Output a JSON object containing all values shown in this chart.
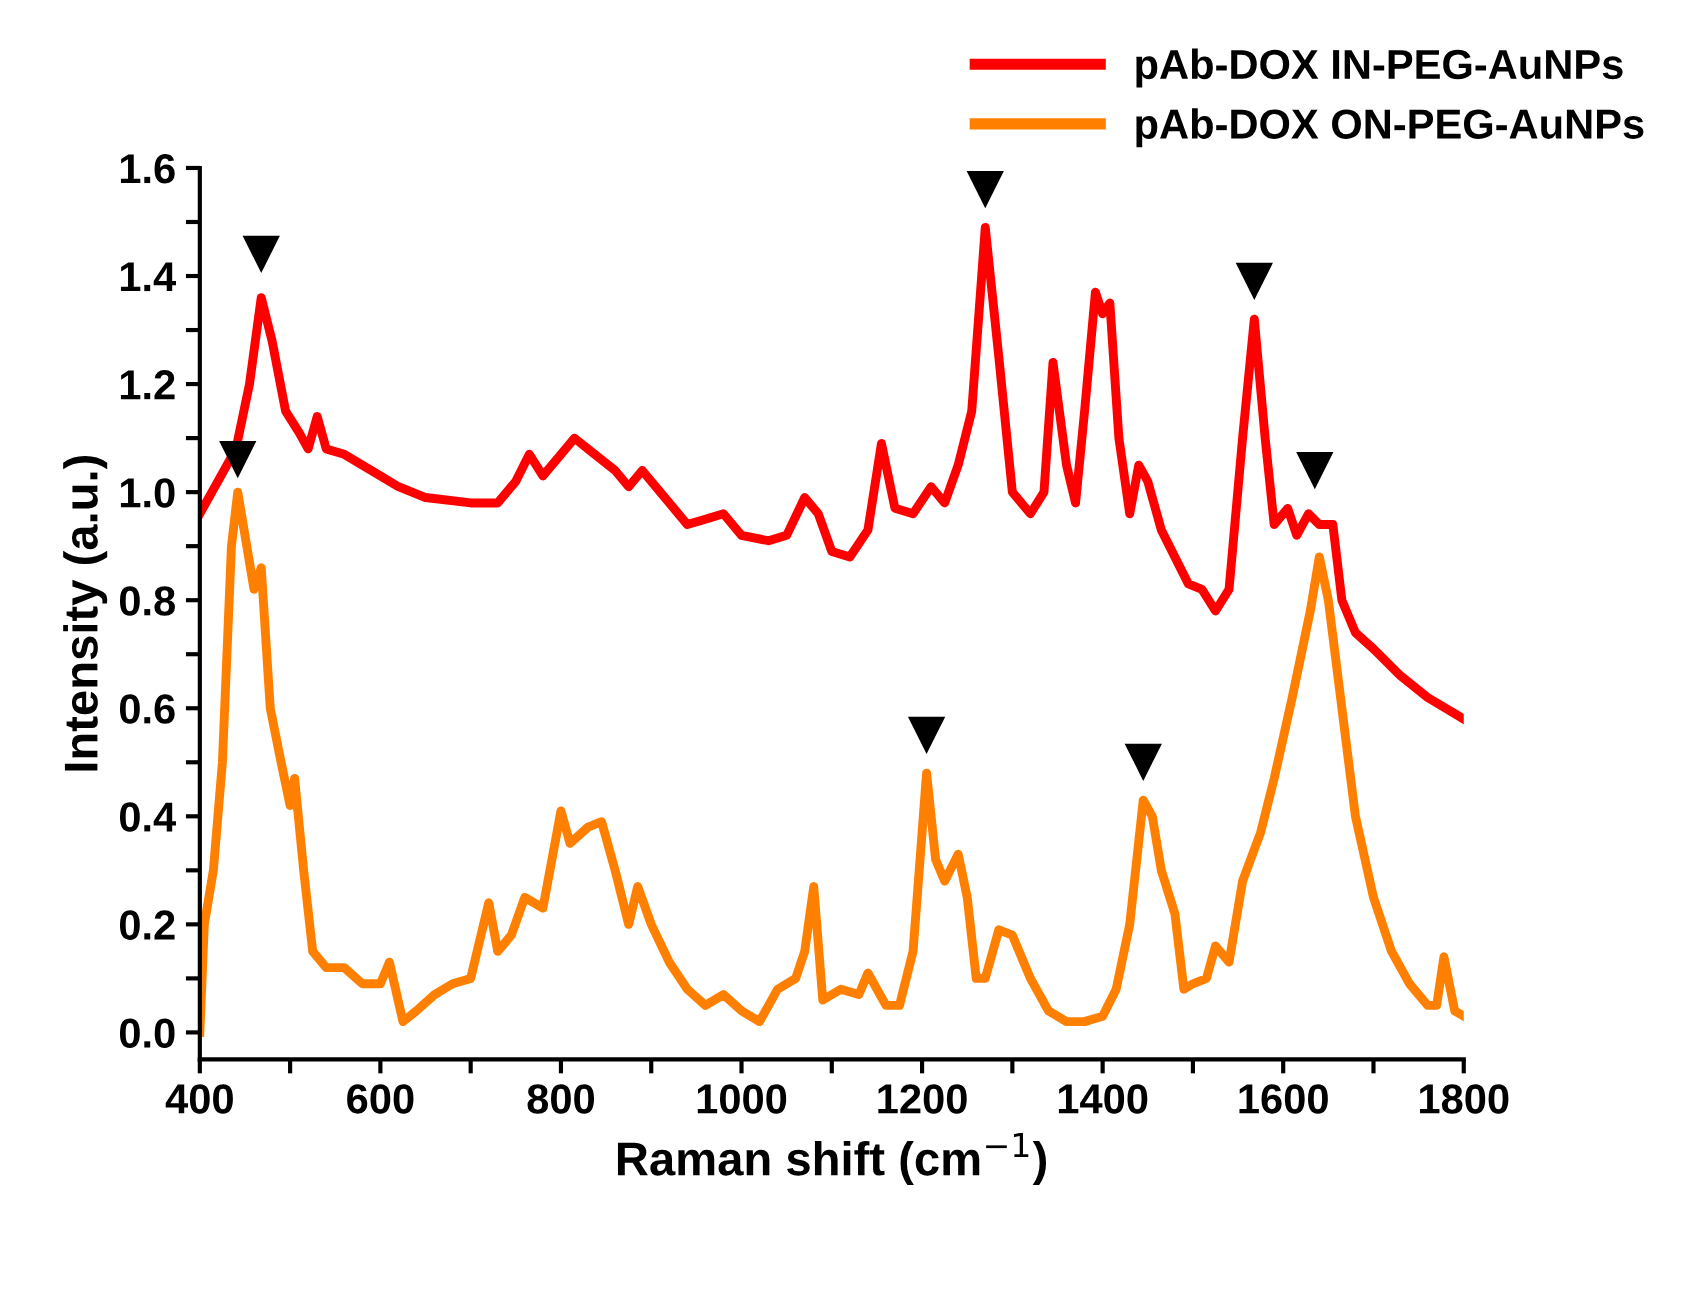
{
  "chart_data": {
    "type": "line",
    "xlabel": "Raman shift (cm$^{−1}$)",
    "ylabel": "Intensity (a.u.)",
    "xlim": [
      400,
      1800
    ],
    "ylim": [
      -0.05,
      1.6
    ],
    "xticks": [
      400,
      {
        "value": 500,
        "label": null
      },
      600,
      {
        "value": 700,
        "label": null
      },
      800,
      {
        "value": 900,
        "label": null
      },
      1000,
      {
        "value": 1100,
        "label": null
      },
      1200,
      {
        "value": 1300,
        "label": null
      },
      1400,
      {
        "value": 1500,
        "label": null
      },
      1600,
      {
        "value": 1700,
        "label": null
      },
      1800
    ],
    "yticks": [
      {
        "value": 0.0,
        "label": "0.0"
      },
      {
        "value": 0.1,
        "label": null
      },
      0.2,
      {
        "value": 0.3,
        "label": null
      },
      0.4,
      {
        "value": 0.5,
        "label": null
      },
      0.6,
      {
        "value": 0.7,
        "label": null
      },
      0.8,
      {
        "value": 0.9,
        "label": null
      },
      {
        "value": 1.0,
        "label": "1.0"
      },
      {
        "value": 1.1,
        "label": null
      },
      1.2,
      {
        "value": 1.3,
        "label": null
      },
      1.4,
      {
        "value": 1.5,
        "label": null
      },
      1.6
    ],
    "grid": false,
    "legend": "top right",
    "marker": "none",
    "line_style": "solid",
    "series": [
      {
        "name": "pAb-DOX IN-PEG-AuNPs",
        "color": "#ff0000",
        "x": [
          400,
          420,
          440,
          455,
          468,
          480,
          495,
          510,
          520,
          530,
          540,
          560,
          580,
          600,
          620,
          650,
          700,
          730,
          750,
          765,
          780,
          800,
          815,
          830,
          860,
          875,
          890,
          910,
          940,
          960,
          980,
          1000,
          1030,
          1050,
          1070,
          1085,
          1100,
          1120,
          1140,
          1155,
          1170,
          1190,
          1210,
          1225,
          1240,
          1255,
          1270,
          1285,
          1300,
          1320,
          1335,
          1345,
          1360,
          1370,
          1380,
          1392,
          1400,
          1408,
          1418,
          1430,
          1440,
          1450,
          1465,
          1480,
          1495,
          1510,
          1525,
          1540,
          1555,
          1568,
          1580,
          1590,
          1605,
          1615,
          1628,
          1640,
          1655,
          1665,
          1680,
          1700,
          1730,
          1760,
          1790,
          1800
        ],
        "values": [
          0.96,
          1.02,
          1.08,
          1.2,
          1.36,
          1.28,
          1.15,
          1.11,
          1.08,
          1.14,
          1.08,
          1.07,
          1.05,
          1.03,
          1.01,
          0.99,
          0.98,
          0.98,
          1.02,
          1.07,
          1.03,
          1.07,
          1.1,
          1.08,
          1.04,
          1.01,
          1.04,
          1.0,
          0.94,
          0.95,
          0.96,
          0.92,
          0.91,
          0.92,
          0.99,
          0.96,
          0.89,
          0.88,
          0.93,
          1.09,
          0.97,
          0.96,
          1.01,
          0.98,
          1.05,
          1.15,
          1.49,
          1.25,
          1.0,
          0.96,
          1.0,
          1.24,
          1.05,
          0.98,
          1.15,
          1.37,
          1.33,
          1.35,
          1.1,
          0.96,
          1.05,
          1.02,
          0.93,
          0.88,
          0.83,
          0.82,
          0.78,
          0.82,
          1.1,
          1.32,
          1.1,
          0.94,
          0.97,
          0.92,
          0.96,
          0.94,
          0.94,
          0.8,
          0.74,
          0.71,
          0.66,
          0.62,
          0.59,
          0.58
        ]
      },
      {
        "name": "pAb-DOX ON-PEG-AuNPs",
        "color": "#ff8000",
        "x": [
          400,
          405,
          415,
          425,
          435,
          442,
          450,
          460,
          468,
          478,
          490,
          500,
          505,
          515,
          525,
          540,
          560,
          580,
          600,
          610,
          625,
          640,
          660,
          680,
          700,
          720,
          730,
          745,
          760,
          780,
          790,
          800,
          810,
          830,
          845,
          860,
          875,
          885,
          900,
          920,
          940,
          960,
          980,
          1000,
          1020,
          1040,
          1060,
          1070,
          1080,
          1090,
          1110,
          1130,
          1140,
          1160,
          1175,
          1190,
          1205,
          1215,
          1225,
          1240,
          1250,
          1260,
          1270,
          1285,
          1300,
          1320,
          1340,
          1360,
          1380,
          1400,
          1415,
          1430,
          1445,
          1455,
          1465,
          1480,
          1490,
          1500,
          1515,
          1525,
          1540,
          1555,
          1575,
          1590,
          1610,
          1630,
          1640,
          1650,
          1665,
          1680,
          1700,
          1720,
          1740,
          1760,
          1770,
          1778,
          1790,
          1800
        ],
        "values": [
          0.0,
          0.2,
          0.3,
          0.5,
          0.9,
          1.0,
          0.92,
          0.82,
          0.86,
          0.6,
          0.5,
          0.42,
          0.47,
          0.3,
          0.15,
          0.12,
          0.12,
          0.09,
          0.09,
          0.13,
          0.02,
          0.04,
          0.07,
          0.09,
          0.1,
          0.24,
          0.15,
          0.18,
          0.25,
          0.23,
          0.32,
          0.41,
          0.35,
          0.38,
          0.39,
          0.3,
          0.2,
          0.27,
          0.2,
          0.13,
          0.08,
          0.05,
          0.07,
          0.04,
          0.02,
          0.08,
          0.1,
          0.15,
          0.27,
          0.06,
          0.08,
          0.07,
          0.11,
          0.05,
          0.05,
          0.15,
          0.48,
          0.32,
          0.28,
          0.33,
          0.25,
          0.1,
          0.1,
          0.19,
          0.18,
          0.1,
          0.04,
          0.02,
          0.02,
          0.03,
          0.08,
          0.2,
          0.43,
          0.4,
          0.3,
          0.22,
          0.08,
          0.09,
          0.1,
          0.16,
          0.13,
          0.28,
          0.37,
          0.47,
          0.62,
          0.78,
          0.88,
          0.8,
          0.6,
          0.4,
          0.25,
          0.15,
          0.09,
          0.05,
          0.05,
          0.14,
          0.04,
          0.03
        ]
      },
      {
        "type": "scatter",
        "marker": "triangle",
        "color": "#000000",
        "x": [
          442,
          468,
          1205,
          1270,
          1445,
          1568,
          1635
        ],
        "values": [
          1.06,
          1.44,
          0.55,
          1.56,
          0.5,
          1.39,
          1.04
        ]
      }
    ]
  }
}
